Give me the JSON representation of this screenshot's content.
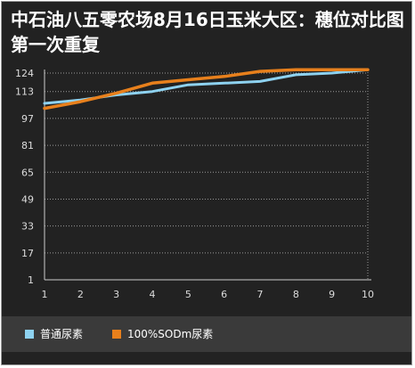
{
  "chart_data": {
    "type": "line",
    "title": "中石油八五零农场8月16日玉米大区：穗位对比图第一次重复",
    "x": [
      1,
      2,
      3,
      4,
      5,
      6,
      7,
      8,
      9,
      10
    ],
    "y_ticks": [
      1,
      17,
      33,
      49,
      65,
      81,
      97,
      113,
      124
    ],
    "ylim": [
      1,
      124
    ],
    "xlim": [
      1,
      10
    ],
    "grid": true,
    "legend_position": "bottom-left",
    "series": [
      {
        "name": "普通尿素",
        "color": "#8ed2f0",
        "values": [
          106,
          108,
          111,
          113,
          117,
          118,
          119,
          123,
          124,
          126
        ]
      },
      {
        "name": "100%SODm尿素",
        "color": "#e8801c",
        "values": [
          103,
          107,
          112,
          118,
          120,
          122,
          125,
          126,
          126,
          126
        ]
      }
    ]
  }
}
